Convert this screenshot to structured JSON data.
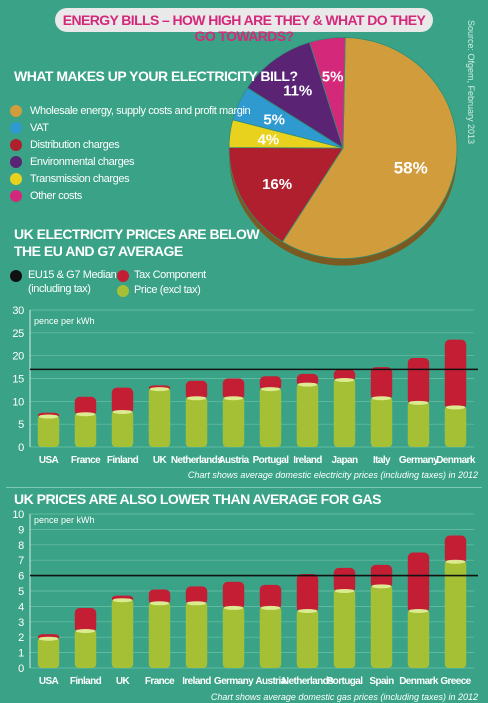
{
  "header": {
    "title": "ENERGY BILLS – HOW HIGH ARE THEY & WHAT DO THEY GO TOWARDS?",
    "source": "Source: Ofgem, February 2013"
  },
  "colors": {
    "background": "#3aa387",
    "wholesale": "#d19c3c",
    "vat": "#2e9ad0",
    "distribution": "#b01f2e",
    "environmental": "#5a2374",
    "transmission": "#e8d21d",
    "other": "#d4287a",
    "tax": "#c41e35",
    "price": "#a5c034",
    "median": "#111111"
  },
  "icons": [
    "circle-bullet-icon"
  ],
  "pie_section": {
    "title": "WHAT MAKES UP YOUR ELECTRICITY BILL?",
    "legend": [
      "Wholesale energy, supply costs and profit margin",
      "VAT",
      "Distribution charges",
      "Environmental charges",
      "Transmission charges",
      "Other costs"
    ]
  },
  "electricity_section": {
    "title_line1": "UK ELECTRICITY PRICES ARE BELOW",
    "title_line2": "THE EU AND G7 AVERAGE",
    "legend_median_line1": "EU15 & G7 Median",
    "legend_median_line2": "(including tax)",
    "legend_tax": "Tax Component",
    "legend_price": "Price (excl tax)",
    "unit": "pence per kWh",
    "note": "Chart shows average domestic electricity prices (including taxes) in 2012"
  },
  "gas_section": {
    "title": "UK PRICES ARE ALSO LOWER THAN AVERAGE FOR GAS",
    "unit": "pence per kWh",
    "note": "Chart shows average domestic gas prices (including taxes) in 2012"
  },
  "chart_data": [
    {
      "type": "pie",
      "title": "WHAT MAKES UP YOUR ELECTRICITY BILL?",
      "labels": [
        "Wholesale energy, supply costs and profit margin",
        "VAT",
        "Distribution charges",
        "Environmental charges",
        "Transmission charges",
        "Other costs"
      ],
      "values": [
        58,
        5,
        16,
        11,
        4,
        5
      ],
      "value_labels": [
        "58%",
        "5%",
        "16%",
        "11%",
        "4%",
        "5%"
      ]
    },
    {
      "type": "bar",
      "stacked": true,
      "title": "UK ELECTRICITY PRICES ARE BELOW THE EU AND G7 AVERAGE",
      "ylabel": "pence per kWh",
      "ylim": [
        0,
        30
      ],
      "yticks": [
        0,
        5,
        10,
        15,
        20,
        25,
        30
      ],
      "categories": [
        "USA",
        "France",
        "Finland",
        "UK",
        "Netherlands",
        "Austria",
        "Portugal",
        "Ireland",
        "Japan",
        "Italy",
        "Germany",
        "Denmark"
      ],
      "series": [
        {
          "name": "Price (excl tax)",
          "values": [
            7.0,
            7.5,
            8.0,
            13.0,
            11.0,
            11.0,
            13.0,
            14.0,
            15.0,
            11.0,
            10.0,
            9.0
          ]
        },
        {
          "name": "Tax Component",
          "values": [
            0.5,
            3.5,
            5.0,
            0.5,
            3.5,
            4.0,
            2.5,
            2.0,
            2.0,
            6.5,
            9.5,
            14.5
          ]
        }
      ],
      "median": {
        "name": "EU15 & G7 Median",
        "value": 17.0
      }
    },
    {
      "type": "bar",
      "stacked": true,
      "title": "UK PRICES ARE ALSO LOWER THAN AVERAGE FOR GAS",
      "ylabel": "pence per kWh",
      "ylim": [
        0,
        10
      ],
      "yticks": [
        0,
        1,
        2,
        3,
        4,
        5,
        6,
        7,
        8,
        9,
        10
      ],
      "categories": [
        "USA",
        "Finland",
        "UK",
        "France",
        "Ireland",
        "Germany",
        "Austria",
        "Netherlands",
        "Portugal",
        "Spain",
        "Denmark",
        "Greece"
      ],
      "series": [
        {
          "name": "Price (excl tax)",
          "values": [
            2.0,
            2.5,
            4.5,
            4.3,
            4.3,
            4.0,
            4.0,
            3.8,
            5.1,
            5.4,
            3.8,
            7.0
          ]
        },
        {
          "name": "Tax Component",
          "values": [
            0.2,
            1.4,
            0.2,
            0.8,
            1.0,
            1.6,
            1.4,
            2.3,
            1.4,
            1.3,
            3.7,
            1.6
          ]
        }
      ],
      "median": {
        "name": "EU15 & G7 Median",
        "value": 6.0
      }
    }
  ]
}
